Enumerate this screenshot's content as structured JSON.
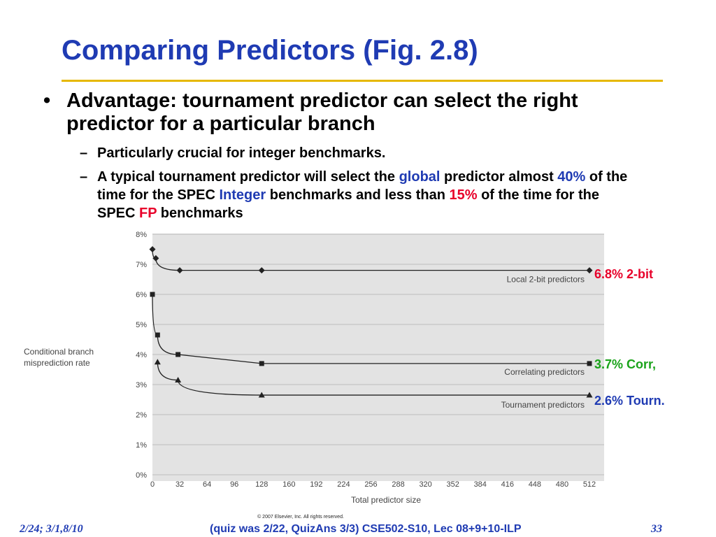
{
  "slide": {
    "title": "Comparing Predictors (Fig. 2.8)",
    "bullet": {
      "marker": "•",
      "text": "Advantage: tournament predictor can select the right predictor for a particular branch"
    },
    "sub1": {
      "marker": "–",
      "text": "Particularly crucial for integer benchmarks."
    },
    "sub2": {
      "marker": "–",
      "t1": "A typical tournament predictor will select the ",
      "global": "global",
      "t2": " predictor almost ",
      "p40": "40%",
      "t3": " of the time for the SPEC ",
      "integer": "Integer",
      "t4": " benchmarks and less than ",
      "p15": "15%",
      "t5": " of the time for the SPEC ",
      "fp": "FP",
      "t6": " benchmarks"
    }
  },
  "chart_data": {
    "type": "line",
    "xlabel": "Total predictor size",
    "ylabel": "Conditional branch misprediction rate",
    "x_ticks": [
      0,
      32,
      64,
      96,
      128,
      160,
      192,
      224,
      256,
      288,
      320,
      352,
      384,
      416,
      448,
      480,
      512
    ],
    "y_ticks": [
      "0%",
      "1%",
      "2%",
      "3%",
      "4%",
      "5%",
      "6%",
      "7%",
      "8%"
    ],
    "xlim": [
      0,
      512
    ],
    "ylim": [
      0,
      8
    ],
    "grid": "horizontal",
    "copyright": "© 2007 Elsevier, Inc. All rights reserved.",
    "series": [
      {
        "name": "Local 2-bit predictors",
        "marker": "diamond",
        "points": [
          [
            0,
            7.5
          ],
          [
            4,
            7.2
          ],
          [
            32,
            6.8
          ],
          [
            128,
            6.8
          ],
          [
            512,
            6.8
          ]
        ]
      },
      {
        "name": "Correlating predictors",
        "marker": "square",
        "points": [
          [
            0,
            6.0
          ],
          [
            6,
            4.65
          ],
          [
            30,
            4.0
          ],
          [
            128,
            3.7
          ],
          [
            512,
            3.7
          ]
        ]
      },
      {
        "name": "Tournament predictors",
        "marker": "triangle",
        "points": [
          [
            6,
            3.75
          ],
          [
            30,
            3.15
          ],
          [
            128,
            2.65
          ],
          [
            512,
            2.65
          ]
        ]
      }
    ]
  },
  "annotations": {
    "local": "6.8% 2-bit",
    "corr": "3.7% Corr,",
    "tourn": "2.6% Tourn.",
    "colors": {
      "local": "#e8002a",
      "corr": "#1aa31a",
      "tourn": "#1f3bb3"
    }
  },
  "footer": {
    "left": "2/24; 3/1,8/10",
    "center": "(quiz was 2/22, QuizAns 3/3)  CSE502-S10, Lec 08+9+10-ILP",
    "right": "33"
  }
}
